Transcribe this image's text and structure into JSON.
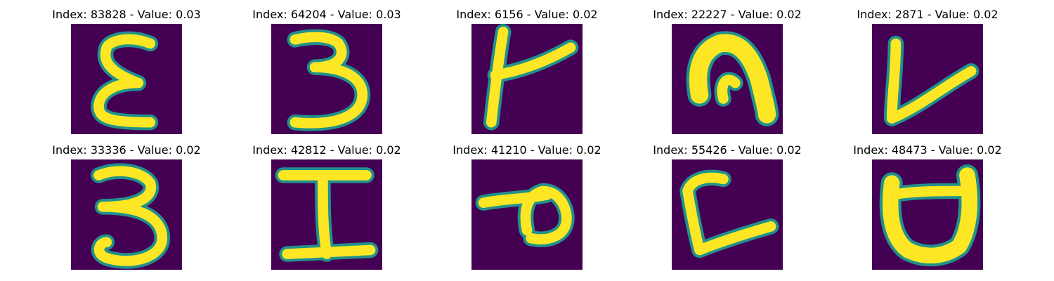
{
  "colors": {
    "background": "#440154",
    "mid": "#21918c",
    "teal": "#2fb47c",
    "foreground": "#fde725"
  },
  "panels": [
    {
      "title": "Index: 83828 - Value: 0.03",
      "glyph": "epsilon"
    },
    {
      "title": "Index: 64204 - Value: 0.03",
      "glyph": "three"
    },
    {
      "title": "Index: 6156 - Value: 0.02",
      "glyph": "k-like"
    },
    {
      "title": "Index: 22227 - Value: 0.02",
      "glyph": "arch"
    },
    {
      "title": "Index: 2871 - Value: 0.02",
      "glyph": "v-like"
    },
    {
      "title": "Index: 33336 - Value: 0.02",
      "glyph": "three"
    },
    {
      "title": "Index: 42812 - Value: 0.02",
      "glyph": "capital-i"
    },
    {
      "title": "Index: 41210 - Value: 0.02",
      "glyph": "rotated-p"
    },
    {
      "title": "Index: 55426 - Value: 0.02",
      "glyph": "l-like"
    },
    {
      "title": "Index: 48473 - Value: 0.02",
      "glyph": "u-like"
    }
  ]
}
